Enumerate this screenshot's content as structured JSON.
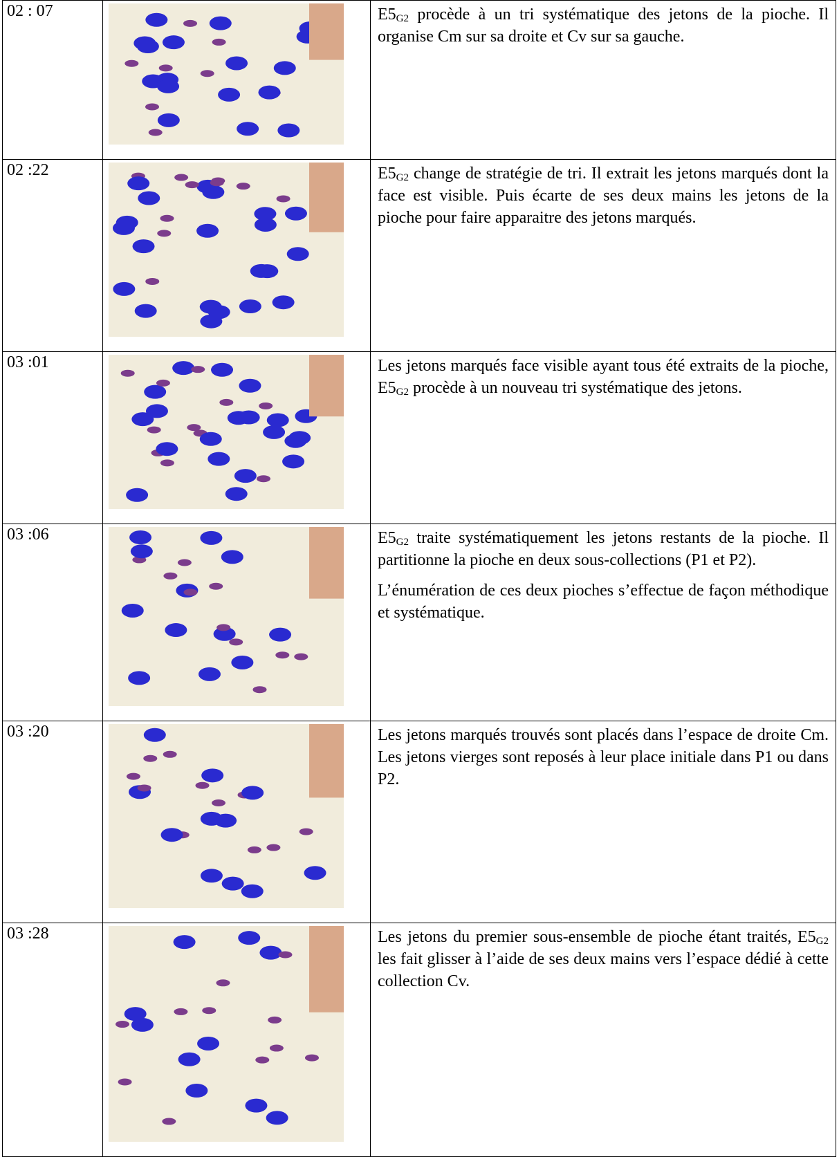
{
  "table": {
    "rows": [
      {
        "time": "02 : 07",
        "paragraphs": [
          [
            {
              "text": "E5"
            },
            {
              "text": "G2",
              "sub": true
            },
            {
              "text": " procède à un tri systématique des jetons de la pioche. Il organise Cm sur sa droite et Cv sur sa gauche."
            }
          ]
        ]
      },
      {
        "time": "02 :22",
        "paragraphs": [
          [
            {
              "text": "E5"
            },
            {
              "text": "G2",
              "sub": true
            },
            {
              "text": " change de stratégie de tri. Il extrait les jetons marqués dont la face est visible. Puis écarte de ses deux mains les jetons de la pioche pour faire apparaitre des jetons marqués."
            }
          ]
        ]
      },
      {
        "time": "03 :01",
        "paragraphs": [
          [
            {
              "text": "Les jetons marqués face visible ayant tous été extraits de la pioche, E5"
            },
            {
              "text": "G2",
              "sub": true
            },
            {
              "text": " procède à un nouveau tri systématique des jetons."
            }
          ]
        ]
      },
      {
        "time": "03 :06",
        "paragraphs": [
          [
            {
              "text": "E5"
            },
            {
              "text": "G2",
              "sub": true
            },
            {
              "text": " traite systématiquement les jetons restants de la pioche. Il partitionne la pioche en deux sous-collections (P1 et P2)."
            }
          ],
          [
            {
              "text": "L’énumération de ces deux pioches s’effectue de façon méthodique et systématique."
            }
          ]
        ]
      },
      {
        "time": "03 :20",
        "paragraphs": [
          [
            {
              "text": "Les jetons marqués trouvés sont placés dans l’espace de droite Cm. Les jetons vierges sont reposés à leur place initiale dans P1 ou dans P2."
            }
          ]
        ]
      },
      {
        "time": "03 :28",
        "paragraphs": [
          [
            {
              "text": "Les jetons du premier sous-ensemble de pioche étant traités, E5"
            },
            {
              "text": "G2",
              "sub": true
            },
            {
              "text": " les fait glisser à l’aide de ses deux mains vers l’espace dédié à cette collection Cv."
            }
          ]
        ]
      }
    ]
  }
}
